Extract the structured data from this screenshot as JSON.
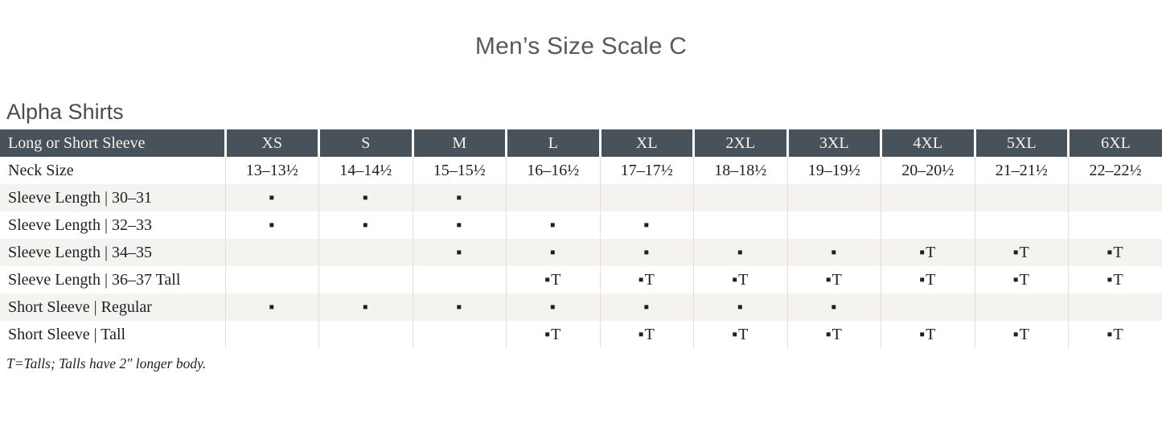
{
  "page": {
    "title": "Men’s Size Scale C",
    "section_title": "Alpha Shirts",
    "footnote": "T=Talls; Talls have 2″ longer body."
  },
  "table": {
    "header": {
      "label": "Long or Short Sleeve",
      "sizes": [
        "XS",
        "S",
        "M",
        "L",
        "XL",
        "2XL",
        "3XL",
        "4XL",
        "5XL",
        "6XL"
      ]
    },
    "rows": [
      {
        "label": "Neck Size",
        "cells": [
          "13–13½",
          "14–14½",
          "15–15½",
          "16–16½",
          "17–17½",
          "18–18½",
          "19–19½",
          "20–20½",
          "21–21½",
          "22–22½"
        ]
      },
      {
        "label": "Sleeve Length | 30–31",
        "cells": [
          "▪",
          "▪",
          "▪",
          "",
          "",
          "",
          "",
          "",
          "",
          ""
        ]
      },
      {
        "label": "Sleeve Length | 32–33",
        "cells": [
          "▪",
          "▪",
          "▪",
          "▪",
          "▪",
          "",
          "",
          "",
          "",
          ""
        ]
      },
      {
        "label": "Sleeve Length | 34–35",
        "cells": [
          "",
          "",
          "▪",
          "▪",
          "▪",
          "▪",
          "▪",
          "▪T",
          "▪T",
          "▪T"
        ]
      },
      {
        "label": "Sleeve Length | 36–37 Tall",
        "cells": [
          "",
          "",
          "",
          "▪T",
          "▪T",
          "▪T",
          "▪T",
          "▪T",
          "▪T",
          "▪T"
        ]
      },
      {
        "label": "Short Sleeve | Regular",
        "cells": [
          "▪",
          "▪",
          "▪",
          "▪",
          "▪",
          "▪",
          "▪",
          "",
          "",
          ""
        ]
      },
      {
        "label": "Short Sleeve | Tall",
        "cells": [
          "",
          "",
          "",
          "▪T",
          "▪T",
          "▪T",
          "▪T",
          "▪T",
          "▪T",
          "▪T"
        ]
      }
    ],
    "legend": {
      "marker": "▪",
      "tall_marker": "▪T"
    }
  },
  "colors": {
    "header_bg": "#47525a",
    "header_text": "#f4f3ef",
    "zebra_row_bg": "#f4f3f0",
    "title_text": "#58595b",
    "body_text": "#1f1f1f",
    "divider": "#e2dfdb"
  }
}
